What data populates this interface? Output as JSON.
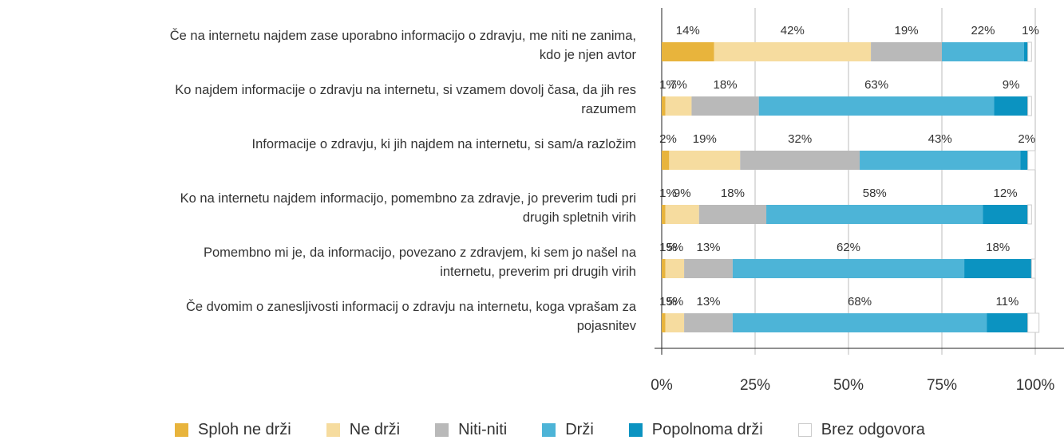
{
  "chart_data": {
    "type": "bar",
    "orientation": "horizontal",
    "stacked": true,
    "categories": [
      "Če na internetu najdem zase uporabno informacijo o zdravju, me niti ne zanima, kdo je njen avtor",
      "Ko najdem informacije o zdravju na internetu, si vzamem dovolj časa, da jih res razumem",
      "Informacije o zdravju, ki jih najdem na internetu, si sam/a razložim",
      "Ko na internetu najdem informacijo, pomembno za zdravje, jo preverim tudi pri drugih spletnih virih",
      "Pomembno mi je, da informacijo, povezano z zdravjem, ki sem jo našel na internetu, preverim pri drugih virih",
      "Če dvomim o zanesljivosti informacij o zdravju na internetu, koga vprašam za pojasnitev"
    ],
    "series": [
      {
        "name": "Sploh ne drži",
        "color": "#e8b43c",
        "values": [
          14,
          1,
          2,
          1,
          1,
          1
        ],
        "value_labels": [
          "14%",
          "1%",
          "2%",
          "1%",
          "1%",
          "1%"
        ]
      },
      {
        "name": "Ne drži",
        "color": "#f6dc9f",
        "values": [
          42,
          7,
          19,
          9,
          5,
          5
        ],
        "value_labels": [
          "42%",
          "7%",
          "19%",
          "9%",
          "5%",
          "5%"
        ]
      },
      {
        "name": "Niti-niti",
        "color": "#b9b9b9",
        "values": [
          19,
          18,
          32,
          18,
          13,
          13
        ],
        "value_labels": [
          "19%",
          "18%",
          "32%",
          "18%",
          "13%",
          "13%"
        ]
      },
      {
        "name": "Drži",
        "color": "#4db4d7",
        "values": [
          22,
          63,
          43,
          58,
          62,
          68
        ],
        "value_labels": [
          "22%",
          "63%",
          "43%",
          "58%",
          "62%",
          "68%"
        ]
      },
      {
        "name": "Popolnoma drži",
        "color": "#0b93c1",
        "values": [
          1,
          9,
          2,
          12,
          18,
          11
        ],
        "value_labels": [
          "1%",
          "9%",
          "2%",
          "12%",
          "18%",
          "11%"
        ]
      },
      {
        "name": "Brez odgovora",
        "color": "#ffffff",
        "values": [
          1,
          1,
          2,
          1,
          1,
          3
        ]
      }
    ],
    "xlim": [
      0,
      100
    ],
    "xticks": [
      {
        "value": 0,
        "label": "0%"
      },
      {
        "value": 25,
        "label": "25%"
      },
      {
        "value": 50,
        "label": "50%"
      },
      {
        "value": 75,
        "label": "75%"
      },
      {
        "value": 100,
        "label": "100%"
      }
    ],
    "grid": true,
    "legend": "bottom"
  }
}
